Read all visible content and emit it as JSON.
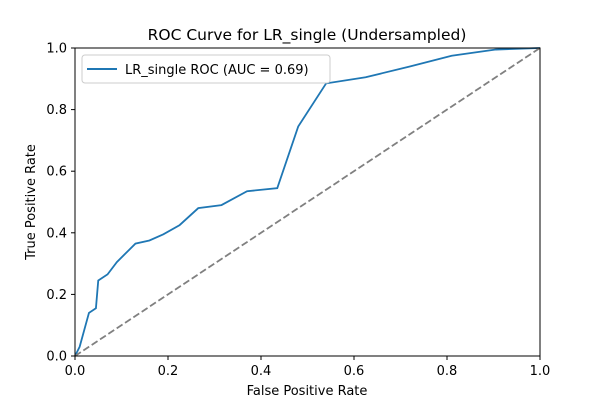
{
  "chart_data": {
    "type": "line",
    "title": "ROC Curve for LR_single (Undersampled)",
    "xlabel": "False Positive Rate",
    "ylabel": "True Positive Rate",
    "xlim": [
      0.0,
      1.0
    ],
    "ylim": [
      0.0,
      1.0
    ],
    "xticks": [
      "0.0",
      "0.2",
      "0.4",
      "0.6",
      "0.8",
      "1.0"
    ],
    "yticks": [
      "0.0",
      "0.2",
      "0.4",
      "0.6",
      "0.8",
      "1.0"
    ],
    "grid": false,
    "legend_position": "top-left",
    "series": [
      {
        "name": "LR_single ROC (AUC = 0.69)",
        "color": "#1f77b4",
        "style": "solid",
        "x": [
          0.0,
          0.01,
          0.03,
          0.045,
          0.05,
          0.07,
          0.09,
          0.13,
          0.16,
          0.19,
          0.225,
          0.265,
          0.315,
          0.37,
          0.435,
          0.48,
          0.54,
          0.625,
          0.72,
          0.81,
          0.905,
          1.0
        ],
        "y": [
          0.0,
          0.03,
          0.14,
          0.155,
          0.245,
          0.265,
          0.305,
          0.365,
          0.375,
          0.395,
          0.425,
          0.48,
          0.49,
          0.535,
          0.545,
          0.745,
          0.885,
          0.905,
          0.94,
          0.975,
          0.995,
          1.0
        ]
      },
      {
        "color": "#808080",
        "style": "dashed",
        "x": [
          0.0,
          1.0
        ],
        "y": [
          0.0,
          1.0
        ]
      }
    ]
  }
}
